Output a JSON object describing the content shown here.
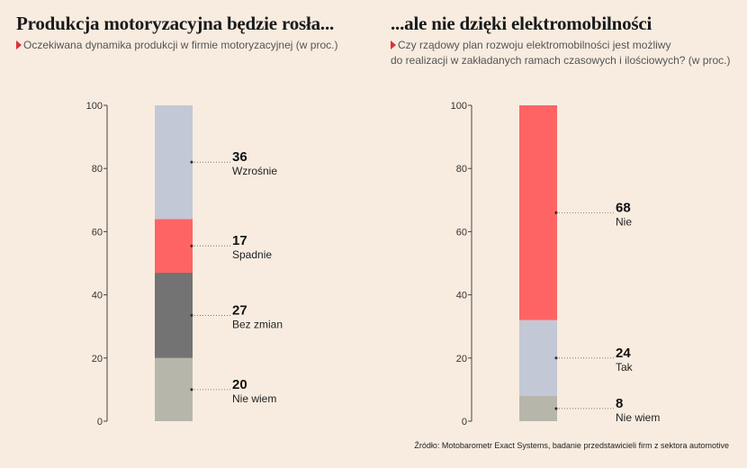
{
  "left_title": "Produkcja motoryzacyjna będzie rosła...",
  "left_subtitle": "Oczekiwana dynamika produkcji w firmie motoryzacyjnej (w proc.)",
  "right_title": "...ale nie dzięki elektromobilności",
  "right_subtitle_line1": "Czy rządowy plan rozwoju elektromobilności jest możliwy",
  "right_subtitle_line2": "do realizacji w zakładanych ramach czasowych i ilościowych? (w proc.)",
  "source": "Źródło: Motobarometr Exact Systems, badanie przedstawicieli firm z sektora automotive",
  "chart_data": [
    {
      "type": "bar",
      "stacked": true,
      "title": "Produkcja motoryzacyjna będzie rosła...",
      "ylim": [
        0,
        100
      ],
      "yticks": [
        0,
        20,
        40,
        60,
        80,
        100
      ],
      "segments": [
        {
          "label": "Nie wiem",
          "value": 20,
          "color": "#b7b6ab"
        },
        {
          "label": "Bez zmian",
          "value": 27,
          "color": "#737373"
        },
        {
          "label": "Spadnie",
          "value": 17,
          "color": "#ff6464"
        },
        {
          "label": "Wzrośnie",
          "value": 36,
          "color": "#c3c8d6"
        }
      ]
    },
    {
      "type": "bar",
      "stacked": true,
      "title": "...ale nie dzięki elektromobilności",
      "ylim": [
        0,
        100
      ],
      "yticks": [
        0,
        20,
        40,
        60,
        80,
        100
      ],
      "segments": [
        {
          "label": "Nie wiem",
          "value": 8,
          "color": "#b7b6ab"
        },
        {
          "label": "Tak",
          "value": 24,
          "color": "#c3c8d6"
        },
        {
          "label": "Nie",
          "value": 68,
          "color": "#ff6464"
        }
      ]
    }
  ]
}
